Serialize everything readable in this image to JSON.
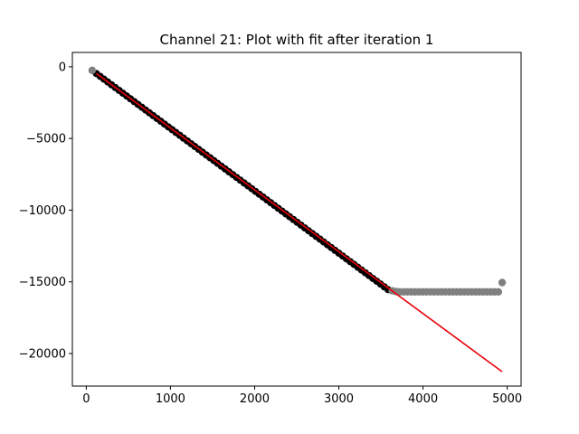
{
  "chart_data": {
    "type": "scatter",
    "title": "Channel 21: Plot with fit after iteration 1",
    "xlabel": "",
    "ylabel": "",
    "xlim": [
      -165,
      5165
    ],
    "ylim": [
      -22270,
      1000
    ],
    "xticks": [
      0,
      1000,
      2000,
      3000,
      4000,
      5000
    ],
    "yticks": [
      0,
      -5000,
      -10000,
      -15000,
      -20000
    ],
    "tick_labels_x": [
      "0",
      "1000",
      "2000",
      "3000",
      "4000",
      "5000"
    ],
    "tick_labels_y": [
      "0",
      "−5000",
      "−10000",
      "−15000",
      "−20000"
    ],
    "grid": false,
    "legend": "none",
    "series": [
      {
        "role": "fitted points",
        "color": "#000000",
        "marker": "circle",
        "x_start": 120,
        "x_end": 3590,
        "x_step": 45,
        "y_formula": "y = -4.35 * x + 50"
      },
      {
        "role": "excluded points",
        "color": "#808080",
        "marker": "circle",
        "points": [
          [
            70,
            -250
          ],
          [
            3635,
            -15630
          ],
          [
            3680,
            -15680
          ],
          [
            3725,
            -15700
          ],
          [
            3770,
            -15700
          ],
          [
            3815,
            -15700
          ],
          [
            3860,
            -15700
          ],
          [
            3905,
            -15700
          ],
          [
            3950,
            -15700
          ],
          [
            3995,
            -15700
          ],
          [
            4040,
            -15700
          ],
          [
            4085,
            -15700
          ],
          [
            4130,
            -15700
          ],
          [
            4175,
            -15700
          ],
          [
            4220,
            -15700
          ],
          [
            4265,
            -15700
          ],
          [
            4310,
            -15700
          ],
          [
            4355,
            -15700
          ],
          [
            4400,
            -15700
          ],
          [
            4445,
            -15700
          ],
          [
            4490,
            -15700
          ],
          [
            4535,
            -15700
          ],
          [
            4580,
            -15700
          ],
          [
            4625,
            -15700
          ],
          [
            4670,
            -15700
          ],
          [
            4715,
            -15700
          ],
          [
            4760,
            -15700
          ],
          [
            4805,
            -15700
          ],
          [
            4850,
            -15700
          ],
          [
            4895,
            -15700
          ],
          [
            4940,
            -15050
          ]
        ]
      },
      {
        "role": "fit line",
        "color": "#e8000b",
        "type": "line",
        "points": [
          [
            120,
            -470
          ],
          [
            4940,
            -21270
          ]
        ]
      }
    ]
  }
}
